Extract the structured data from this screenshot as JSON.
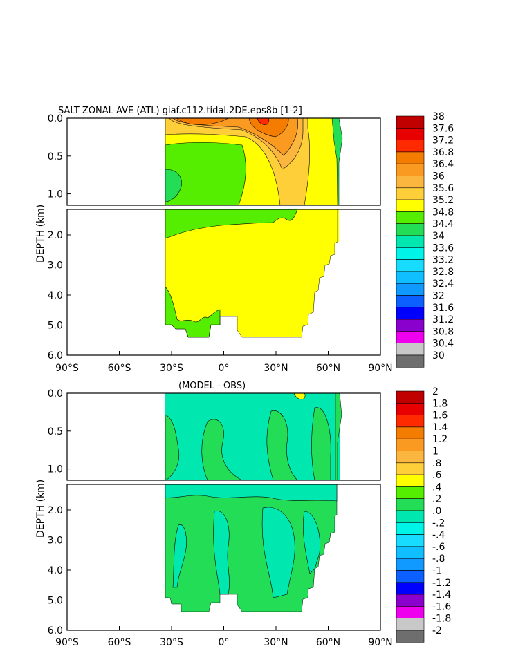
{
  "chart_data": [
    {
      "type": "heatmap",
      "title": "SALT ZONAL-AVE (ATL) giaf.c112.tidal.2DE.eps8b [1-2]",
      "ylabel": "DEPTH (km)",
      "x_ticks": [
        "90°S",
        "60°S",
        "30°S",
        "0°",
        "30°N",
        "60°N",
        "90°N"
      ],
      "y_ticks_upper": [
        "0.0",
        "0.5",
        "1.0"
      ],
      "y_ticks_lower": [
        "2.0",
        "3.0",
        "4.0",
        "5.0",
        "6.0"
      ],
      "colorbar_labels": [
        "38",
        "37.6",
        "37.2",
        "36.8",
        "36.4",
        "36",
        "35.6",
        "35.2",
        "34.8",
        "34.4",
        "34",
        "33.6",
        "33.2",
        "32.8",
        "32.4",
        "32",
        "31.6",
        "31.2",
        "30.8",
        "30.4",
        "30"
      ],
      "colors": [
        "#c00000",
        "#e80000",
        "#ff2a00",
        "#f47c00",
        "#fb9a20",
        "#fbb640",
        "#ffcf3a",
        "#ffff00",
        "#55ee00",
        "#22dd55",
        "#00e8b0",
        "#00f5e8",
        "#18dcff",
        "#10bfff",
        "#1099ff",
        "#0c60ff",
        "#0000ff",
        "#8a00cc",
        "#ee00ee",
        "#c8c8c8"
      ]
    },
    {
      "type": "heatmap",
      "title": "(MODEL - OBS)",
      "ylabel": "DEPTH (km)",
      "x_ticks": [
        "90°S",
        "60°S",
        "30°S",
        "0°",
        "30°N",
        "60°N",
        "90°N"
      ],
      "y_ticks_upper": [
        "0.0",
        "0.5",
        "1.0"
      ],
      "y_ticks_lower": [
        "2.0",
        "3.0",
        "4.0",
        "5.0",
        "6.0"
      ],
      "colorbar_labels": [
        "2",
        "1.8",
        "1.6",
        "1.4",
        "1.2",
        "1",
        ".8",
        ".6",
        ".4",
        ".2",
        ".0",
        "-.2",
        "-.4",
        "-.6",
        "-.8",
        "-1",
        "-1.2",
        "-1.4",
        "-1.6",
        "-1.8",
        "-2"
      ],
      "colors": [
        "#c00000",
        "#e80000",
        "#ff2a00",
        "#f47c00",
        "#fb9a20",
        "#fbb640",
        "#ffcf3a",
        "#ffff00",
        "#55ee00",
        "#22dd55",
        "#00e8b0",
        "#00f5e8",
        "#18dcff",
        "#10bfff",
        "#1099ff",
        "#0c60ff",
        "#0000ff",
        "#8a00cc",
        "#ee00ee",
        "#c8c8c8"
      ]
    }
  ]
}
